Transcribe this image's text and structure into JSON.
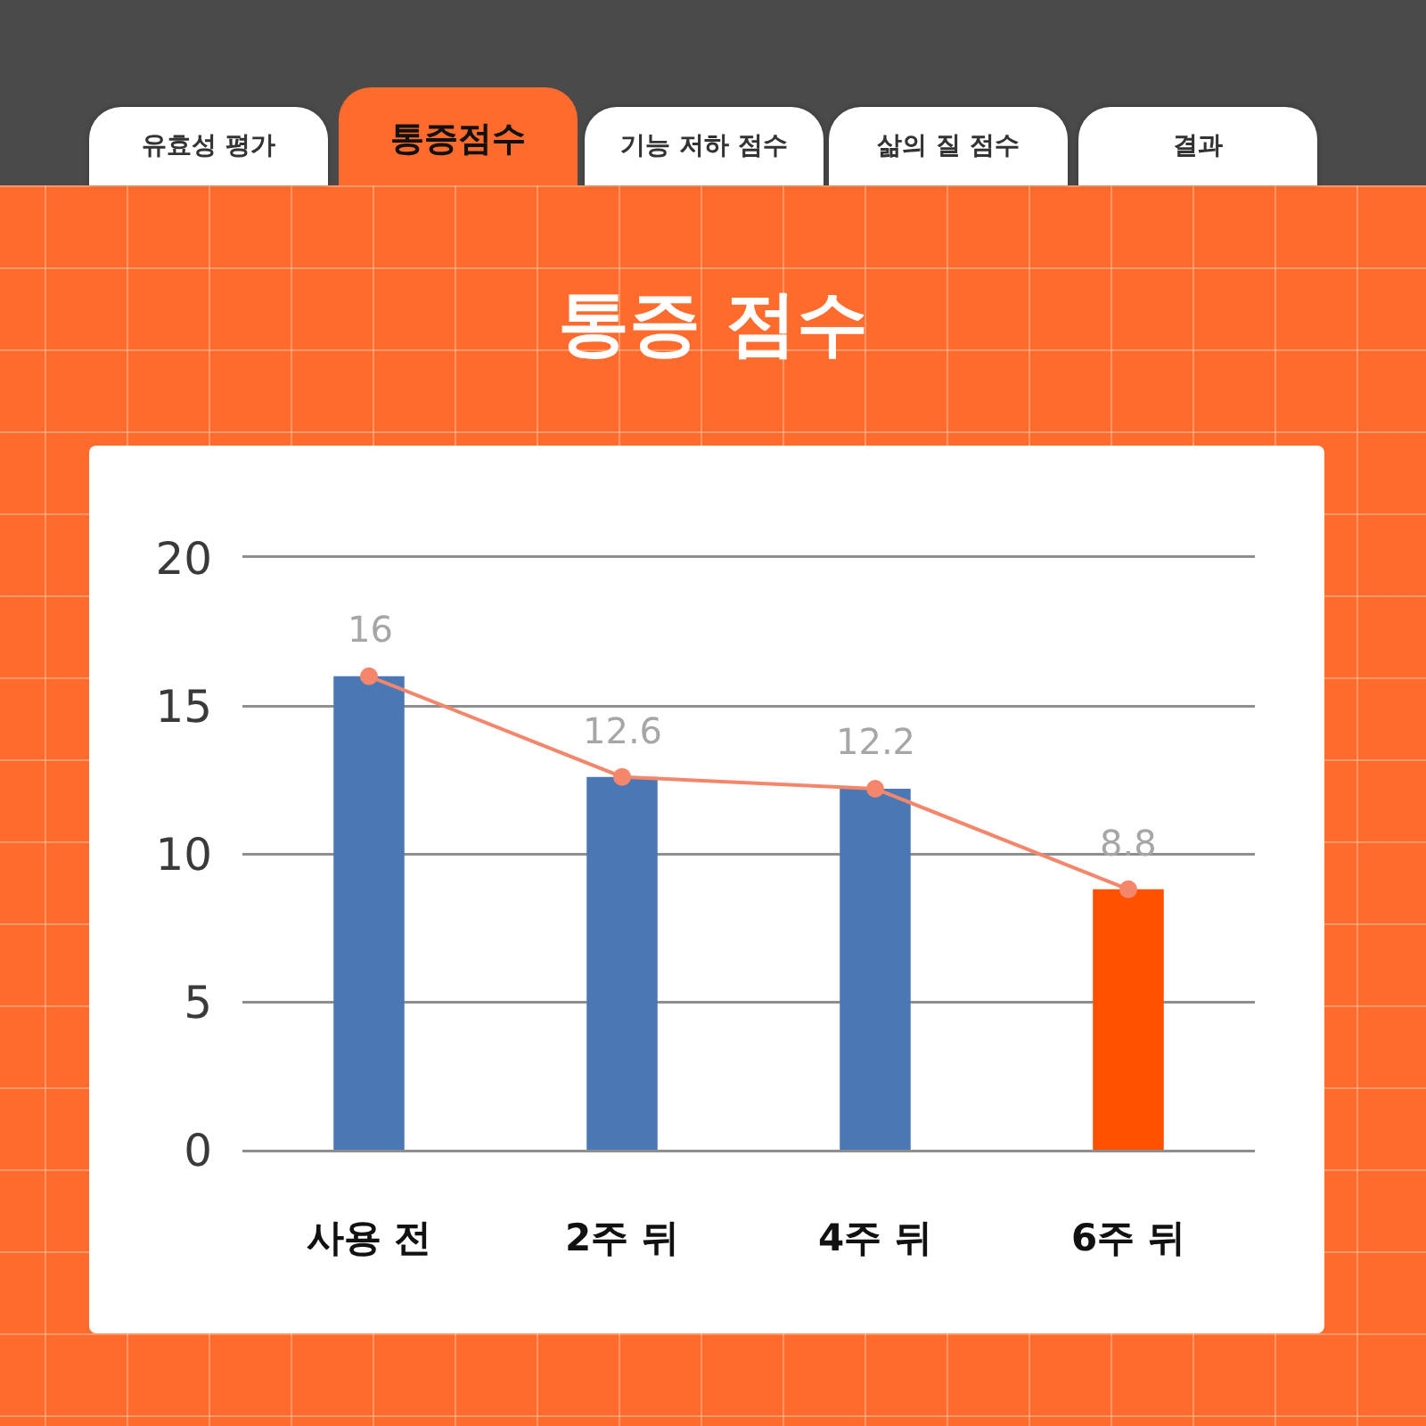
{
  "chart_data": {
    "type": "bar",
    "title": "통증 점수",
    "annotations": [
      "유효성 평가",
      "통증점수",
      "기능 저하 점수",
      "삶의 질 점수",
      "결과"
    ],
    "categories": [
      "사용 전",
      "2주 뒤",
      "4주 뒤",
      "6주 뒤"
    ],
    "series": [
      {
        "colors": [
          "#4a78b4",
          "#4a78b4",
          "#4a78b4",
          "#ff5000"
        ],
        "values": [
          16,
          12.6,
          12.2,
          8.8
        ]
      },
      {
        "type": "line",
        "color": "#f4866c",
        "values": [
          16,
          12.6,
          12.2,
          8.8
        ],
        "value_labels": [
          "16",
          "12.6",
          "12.2",
          "8.8"
        ]
      }
    ],
    "ylim": [
      0,
      20
    ],
    "yticks": [
      0,
      5,
      10,
      15,
      20
    ],
    "grid": "y",
    "legend": false,
    "marker": "circle",
    "line_style": "solid"
  }
}
